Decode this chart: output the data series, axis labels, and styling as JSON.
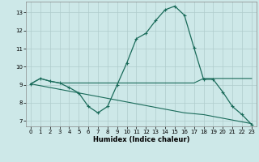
{
  "xlabel": "Humidex (Indice chaleur)",
  "xlim": [
    -0.5,
    23.5
  ],
  "ylim": [
    6.7,
    13.6
  ],
  "yticks": [
    7,
    8,
    9,
    10,
    11,
    12,
    13
  ],
  "xticks": [
    0,
    1,
    2,
    3,
    4,
    5,
    6,
    7,
    8,
    9,
    10,
    11,
    12,
    13,
    14,
    15,
    16,
    17,
    18,
    19,
    20,
    21,
    22,
    23
  ],
  "background_color": "#cde8e8",
  "grid_color": "#b0cccc",
  "line_color": "#1a6b5a",
  "series": {
    "main_peak": {
      "x": [
        0,
        1,
        2,
        3,
        4,
        5,
        6,
        7,
        8,
        9,
        10,
        11,
        12,
        13,
        14,
        15,
        16,
        17,
        18,
        19,
        20,
        21,
        22,
        23
      ],
      "y": [
        9.05,
        9.35,
        9.2,
        9.1,
        8.85,
        8.55,
        7.8,
        7.45,
        7.8,
        9.0,
        10.2,
        11.55,
        11.85,
        12.55,
        13.15,
        13.35,
        12.85,
        11.05,
        9.3,
        9.3,
        8.6,
        7.8,
        7.35,
        6.8
      ]
    },
    "flat_high": {
      "x": [
        0,
        1,
        2,
        3,
        4,
        5,
        6,
        7,
        8,
        9,
        10,
        11,
        12,
        13,
        14,
        15,
        16,
        17,
        18,
        19,
        20,
        21,
        22,
        23
      ],
      "y": [
        9.05,
        9.35,
        9.2,
        9.1,
        9.1,
        9.1,
        9.1,
        9.1,
        9.1,
        9.1,
        9.1,
        9.1,
        9.1,
        9.1,
        9.1,
        9.1,
        9.1,
        9.1,
        9.35,
        9.35,
        9.35,
        9.35,
        9.35,
        9.35
      ]
    },
    "diagonal": {
      "x": [
        0,
        1,
        2,
        3,
        4,
        5,
        6,
        7,
        8,
        9,
        10,
        11,
        12,
        13,
        14,
        15,
        16,
        17,
        18,
        19,
        20,
        21,
        22,
        23
      ],
      "y": [
        9.05,
        8.95,
        8.85,
        8.75,
        8.65,
        8.55,
        8.45,
        8.35,
        8.25,
        8.15,
        8.05,
        7.95,
        7.85,
        7.75,
        7.65,
        7.55,
        7.45,
        7.4,
        7.35,
        7.25,
        7.15,
        7.05,
        6.95,
        6.85
      ]
    }
  }
}
